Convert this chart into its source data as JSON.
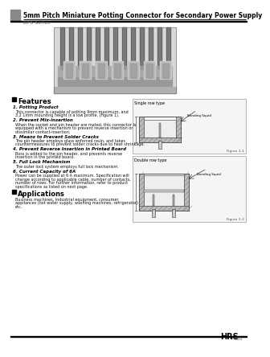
{
  "title": "5mm Pitch Miniature Potting Connector for Secondary Power Supply",
  "series": "DF5 Series",
  "bg_color": "#ffffff",
  "features_title": "Features",
  "features": [
    {
      "heading": "1. Potting Product",
      "body": "This connector is capable of potting 9mm maximum, and\n3.2 1mm mounting height is a low profile. (Figure 1)."
    },
    {
      "heading": "2. Prevent Mix-insertion",
      "body": "When the socket and pin header are mated, this connector is\nequipped with a mechanism to prevent reverse insertion or\ndissimilar contact-insertion."
    },
    {
      "heading": "3. Means to Prevent Solder Cracks",
      "body": "The pin header employs glass enforced resin, and takes\ncountermeasures to prevent solder cracks due to heat shrinkage."
    },
    {
      "heading": "4. Prevent Reverse Insertion in Printed Board",
      "body": "Boss is added to the pin header, and prevents reverse\ninsertion in the printed board."
    },
    {
      "heading": "5. Full Lock Mechanism",
      "body": "The outer lock system employs full lock mechanism."
    },
    {
      "heading": "6. Current Capacity of 6A",
      "body": "Power can be supplied at 6 A maximum. Specification will\nchange according to applicable cable, number of contacts,\nnumber of rows. For further information, refer to product\nspecifications as listed on next page."
    }
  ],
  "applications_title": "Applications",
  "applications_body": "Business machines, Industrial equipment, consumer\nappliances (hot water supply, washing machines, refrigerator)\netc.",
  "footer_brand": "HRS",
  "footer_page": "B85",
  "fig1_label": "Single row type",
  "fig1_caption": "Figure 1-1",
  "fig2_label": "Double row type",
  "fig2_caption": "Figure 1-2",
  "fig1_sublabel": "Bonding Squid",
  "fig2_sublabel": "Bonding Squid"
}
